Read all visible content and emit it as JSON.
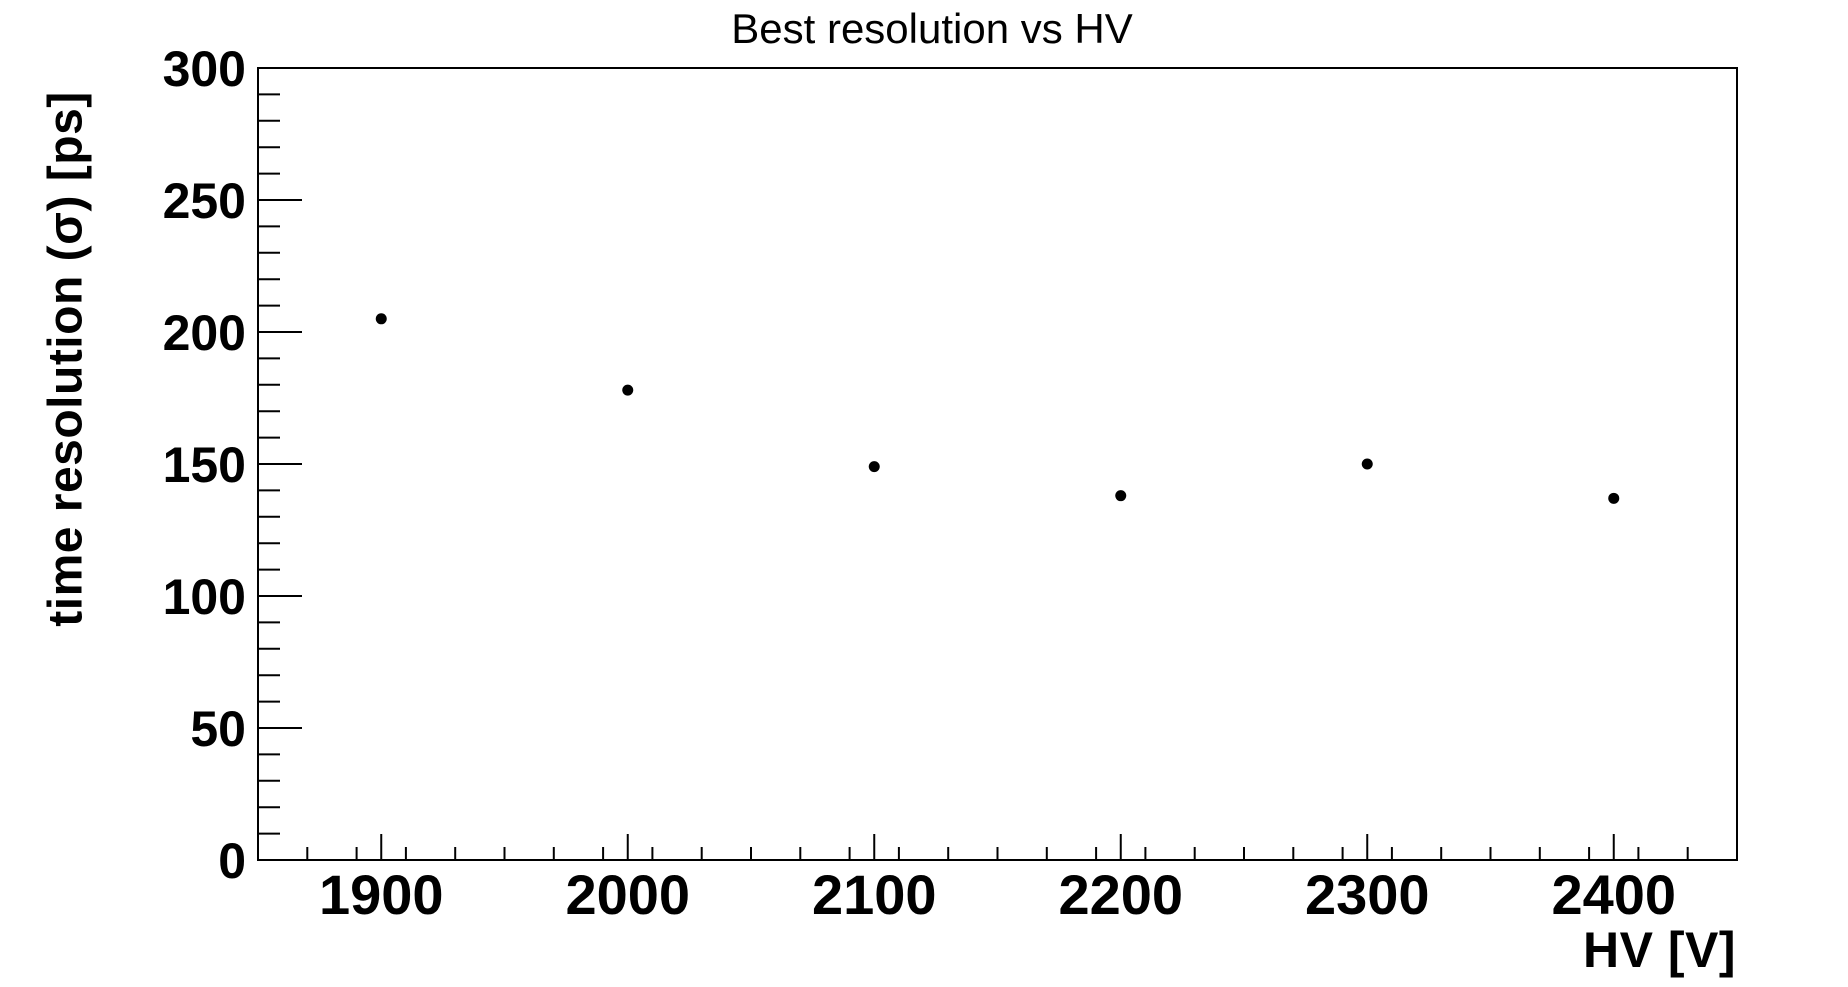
{
  "chart_data": {
    "type": "scatter",
    "title": "Best resolution vs HV",
    "xlabel": "HV [V]",
    "ylabel": "time resolution (σ) [ps]",
    "x": [
      1900,
      2000,
      2100,
      2200,
      2300,
      2400
    ],
    "y": [
      205,
      178,
      149,
      138,
      150,
      137
    ],
    "xlim": [
      1850,
      2450
    ],
    "ylim": [
      0,
      300
    ],
    "x_major_ticks": [
      1900,
      2000,
      2100,
      2200,
      2300,
      2400
    ],
    "x_minor_step": 20,
    "y_major_ticks": [
      0,
      50,
      100,
      150,
      200,
      250,
      300
    ],
    "y_minor_step": 10,
    "grid": false,
    "legend": null,
    "marker": "filled-circle",
    "marker_color": "#000000",
    "axis_color": "#000000",
    "background_color": "#ffffff",
    "ticks_inside": true,
    "ticks_sides": [
      "left",
      "bottom"
    ]
  }
}
